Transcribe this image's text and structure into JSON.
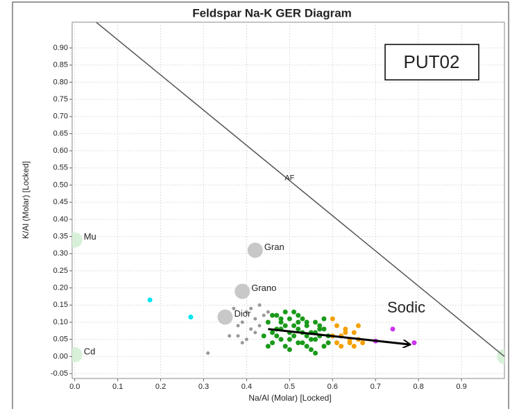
{
  "chart_data": {
    "type": "scatter",
    "title": "Feldspar Na-K GER Diagram",
    "xlabel": "Na/Al (Molar) [Locked]",
    "ylabel": "K/Al (Molar) [Locked]",
    "xlim": [
      -0.006,
      1.0
    ],
    "ylim": [
      -0.064,
      0.975
    ],
    "xticks": [
      {
        "value": 0,
        "label": "0.0"
      },
      0.1,
      0.2,
      0.3,
      0.4,
      0.5,
      0.6,
      0.7,
      0.8,
      0.9
    ],
    "yticks": [
      {
        "value": -0.05,
        "label": "-0.05"
      },
      {
        "value": 0,
        "label": "0.00"
      },
      {
        "value": 0.05,
        "label": "0.05"
      },
      {
        "value": 0.1,
        "label": "0.10"
      },
      {
        "value": 0.15,
        "label": "0.15"
      },
      {
        "value": 0.2,
        "label": "0.20"
      },
      {
        "value": 0.25,
        "label": "0.25"
      },
      {
        "value": 0.3,
        "label": "0.30"
      },
      {
        "value": 0.35,
        "label": "0.35"
      },
      {
        "value": 0.4,
        "label": "0.40"
      },
      {
        "value": 0.45,
        "label": "0.45"
      },
      {
        "value": 0.5,
        "label": "0.50"
      },
      {
        "value": 0.55,
        "label": "0.55"
      },
      {
        "value": 0.6,
        "label": "0.60"
      },
      {
        "value": 0.65,
        "label": "0.65"
      },
      {
        "value": 0.7,
        "label": "0.70"
      },
      {
        "value": 0.75,
        "label": "0.75"
      },
      {
        "value": 0.8,
        "label": "0.80"
      },
      {
        "value": 0.85,
        "label": "0.85"
      },
      {
        "value": 0.9,
        "label": "0.90"
      }
    ],
    "grid": true,
    "line": {
      "label": "AF",
      "x": [
        0.05,
        1.0
      ],
      "values": [
        0.975,
        0.0
      ],
      "label_x": 0.5,
      "label_y": 0.52,
      "color": "#555555"
    },
    "labeled_points": [
      {
        "label": "Mu",
        "x": 0.0,
        "y": 0.34,
        "color": "#d8f0d8"
      },
      {
        "label": "Cd",
        "x": 0.0,
        "y": 0.005,
        "color": "#d8f0d8"
      },
      {
        "x": 1.0,
        "y": 0.0,
        "color": "#d8f0d8"
      },
      {
        "label": "Gran",
        "x": 0.42,
        "y": 0.31,
        "color": "#c8c8c8"
      },
      {
        "label": "Grano",
        "x": 0.39,
        "y": 0.19,
        "color": "#c8c8c8"
      },
      {
        "label": "Dior",
        "x": 0.35,
        "y": 0.115,
        "color": "#c8c8c8"
      }
    ],
    "series": [
      {
        "color": "#999999",
        "x": [
          0.31,
          0.37,
          0.38,
          0.39,
          0.4,
          0.41,
          0.42,
          0.43,
          0.44,
          0.45,
          0.38,
          0.4,
          0.42,
          0.44,
          0.36,
          0.39,
          0.41,
          0.43
        ],
        "values": [
          0.01,
          0.14,
          0.06,
          0.1,
          0.13,
          0.08,
          0.11,
          0.15,
          0.06,
          0.13,
          0.09,
          0.05,
          0.07,
          0.12,
          0.06,
          0.04,
          0.14,
          0.09
        ]
      },
      {
        "color": "#1a9a1a",
        "x": [
          0.45,
          0.46,
          0.47,
          0.48,
          0.49,
          0.5,
          0.51,
          0.52,
          0.53,
          0.54,
          0.55,
          0.56,
          0.57,
          0.58,
          0.59,
          0.46,
          0.48,
          0.5,
          0.52,
          0.54,
          0.56,
          0.58,
          0.47,
          0.49,
          0.51,
          0.53,
          0.55,
          0.57,
          0.59,
          0.44,
          0.46,
          0.48,
          0.5,
          0.52,
          0.54,
          0.56,
          0.5,
          0.52,
          0.54,
          0.49,
          0.51,
          0.53,
          0.55,
          0.57,
          0.45,
          0.47,
          0.6,
          0.58,
          0.56,
          0.48
        ],
        "values": [
          0.1,
          0.07,
          0.12,
          0.05,
          0.09,
          0.11,
          0.06,
          0.08,
          0.04,
          0.1,
          0.07,
          0.05,
          0.09,
          0.03,
          0.06,
          0.04,
          0.11,
          0.02,
          0.12,
          0.06,
          0.1,
          0.08,
          0.08,
          0.03,
          0.13,
          0.07,
          0.02,
          0.06,
          0.04,
          0.06,
          0.12,
          0.08,
          0.07,
          0.1,
          0.03,
          0.07,
          0.05,
          0.04,
          0.09,
          0.13,
          0.09,
          0.11,
          0.05,
          0.08,
          0.03,
          0.06,
          0.06,
          0.11,
          0.01,
          0.1
        ]
      },
      {
        "color": "#f5a000",
        "x": [
          0.6,
          0.61,
          0.62,
          0.63,
          0.64,
          0.65,
          0.66,
          0.61,
          0.63,
          0.62,
          0.64,
          0.6,
          0.66,
          0.65,
          0.67
        ],
        "values": [
          0.11,
          0.09,
          0.06,
          0.08,
          0.04,
          0.03,
          0.09,
          0.04,
          0.07,
          0.03,
          0.05,
          0.06,
          0.05,
          0.07,
          0.04
        ]
      },
      {
        "color": "#cc33ee",
        "x": [
          0.7,
          0.74,
          0.79
        ],
        "values": [
          0.045,
          0.08,
          0.04
        ]
      },
      {
        "color": "#00e5f0",
        "x": [
          0.175,
          0.27
        ],
        "values": [
          0.165,
          0.115
        ]
      }
    ],
    "arrow": {
      "label": "Sodic",
      "x": [
        0.45,
        0.78
      ],
      "values": [
        0.08,
        0.035
      ]
    },
    "box_label": "PUT02"
  }
}
